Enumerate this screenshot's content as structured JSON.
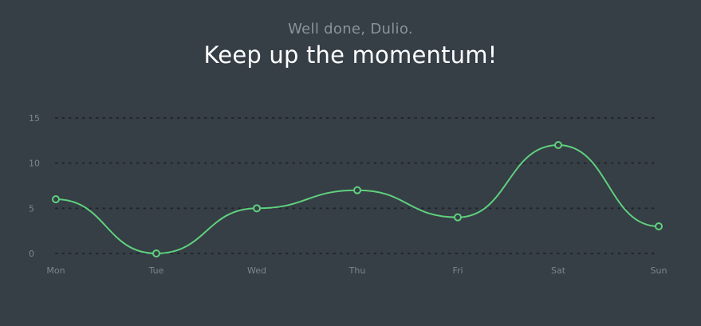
{
  "header": {
    "greeting": "Well done, Dulio.",
    "headline": "Keep up the momentum!"
  },
  "colors": {
    "background": "#363e46",
    "line": "#5fd17d",
    "grid": "#1f252a",
    "tick_text": "#7d868e"
  },
  "chart_data": {
    "type": "line",
    "categories": [
      "Mon",
      "Tue",
      "Wed",
      "Thu",
      "Fri",
      "Sat",
      "Sun"
    ],
    "series": [
      {
        "values": [
          6,
          0,
          5,
          7,
          4,
          12,
          3
        ]
      }
    ],
    "y_ticks": [
      0,
      5,
      10,
      15
    ],
    "ylim": [
      0,
      15
    ],
    "grid": true,
    "grid_style": "dotted",
    "smooth": true,
    "markers": "hollow-circle"
  }
}
